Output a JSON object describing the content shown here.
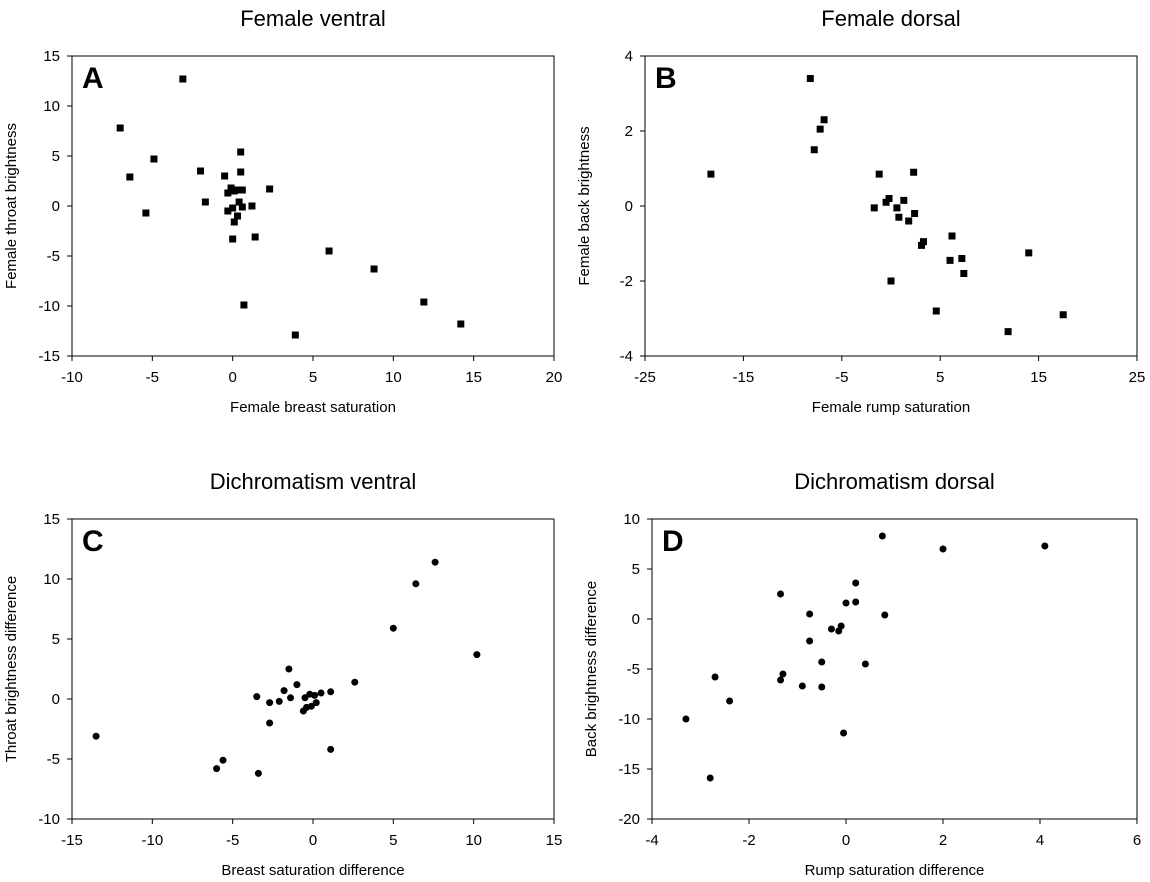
{
  "chart_data": [
    {
      "type": "scatter",
      "panel": "A",
      "title": "Female ventral",
      "xlabel": "Female breast saturation",
      "ylabel": "Female throat brightness",
      "xlim": [
        -10,
        20
      ],
      "ylim": [
        -15,
        15
      ],
      "xticks": [
        -10,
        -5,
        0,
        5,
        10,
        15,
        20
      ],
      "yticks": [
        -15,
        -10,
        -5,
        0,
        5,
        10,
        15
      ],
      "marker": "square",
      "grid": false,
      "points": [
        [
          -3.1,
          12.7
        ],
        [
          -7.0,
          7.8
        ],
        [
          -6.4,
          2.9
        ],
        [
          -4.9,
          4.7
        ],
        [
          -5.4,
          -0.7
        ],
        [
          -2.0,
          3.5
        ],
        [
          -1.7,
          0.4
        ],
        [
          0.5,
          5.4
        ],
        [
          0.5,
          3.4
        ],
        [
          -0.5,
          3.0
        ],
        [
          -0.3,
          1.3
        ],
        [
          -0.1,
          1.8
        ],
        [
          0.1,
          1.5
        ],
        [
          0.2,
          1.6
        ],
        [
          0.6,
          1.6
        ],
        [
          2.3,
          1.7
        ],
        [
          0.4,
          0.4
        ],
        [
          -0.3,
          -0.5
        ],
        [
          0.0,
          -0.2
        ],
        [
          0.6,
          -0.1
        ],
        [
          1.2,
          0.0
        ],
        [
          0.3,
          -1.0
        ],
        [
          0.1,
          -1.6
        ],
        [
          1.4,
          -3.1
        ],
        [
          0.0,
          -3.3
        ],
        [
          6.0,
          -4.5
        ],
        [
          0.7,
          -9.9
        ],
        [
          3.9,
          -12.9
        ],
        [
          8.8,
          -6.3
        ],
        [
          11.9,
          -9.6
        ],
        [
          14.2,
          -11.8
        ]
      ]
    },
    {
      "type": "scatter",
      "panel": "B",
      "title": "Female dorsal",
      "xlabel": "Female rump saturation",
      "ylabel": "Female back brightness",
      "xlim": [
        -25,
        25
      ],
      "ylim": [
        -4,
        4
      ],
      "xticks": [
        -25,
        -15,
        -5,
        5,
        15,
        25
      ],
      "yticks": [
        -4,
        -2,
        0,
        2,
        4
      ],
      "marker": "square",
      "grid": false,
      "points": [
        [
          -8.2,
          3.4
        ],
        [
          -6.8,
          2.3
        ],
        [
          -7.2,
          2.05
        ],
        [
          -7.8,
          1.5
        ],
        [
          -18.3,
          0.85
        ],
        [
          -1.2,
          0.85
        ],
        [
          2.3,
          0.9
        ],
        [
          -0.2,
          0.2
        ],
        [
          -0.5,
          0.1
        ],
        [
          1.3,
          0.15
        ],
        [
          -1.7,
          -0.05
        ],
        [
          0.6,
          -0.05
        ],
        [
          2.4,
          -0.2
        ],
        [
          0.8,
          -0.3
        ],
        [
          1.8,
          -0.4
        ],
        [
          3.3,
          -0.95
        ],
        [
          3.1,
          -1.05
        ],
        [
          0.0,
          -2.0
        ],
        [
          6.2,
          -0.8
        ],
        [
          6.0,
          -1.45
        ],
        [
          7.2,
          -1.4
        ],
        [
          7.4,
          -1.8
        ],
        [
          14.0,
          -1.25
        ],
        [
          4.6,
          -2.8
        ],
        [
          11.9,
          -3.35
        ],
        [
          17.5,
          -2.9
        ]
      ]
    },
    {
      "type": "scatter",
      "panel": "C",
      "title": "Dichromatism ventral",
      "xlabel": "Breast saturation difference",
      "ylabel": "Throat brightness difference",
      "xlim": [
        -15,
        15
      ],
      "ylim": [
        -10,
        15
      ],
      "xticks": [
        -15,
        -10,
        -5,
        0,
        5,
        10,
        15
      ],
      "yticks": [
        -10,
        -5,
        0,
        5,
        10,
        15
      ],
      "marker": "circle",
      "grid": false,
      "points": [
        [
          -13.5,
          -3.1
        ],
        [
          7.6,
          11.4
        ],
        [
          6.4,
          9.6
        ],
        [
          5.0,
          5.9
        ],
        [
          10.2,
          3.7
        ],
        [
          2.6,
          1.4
        ],
        [
          -1.5,
          2.5
        ],
        [
          -1.0,
          1.2
        ],
        [
          -1.8,
          0.7
        ],
        [
          -3.5,
          0.2
        ],
        [
          -2.1,
          -0.2
        ],
        [
          -2.7,
          -0.3
        ],
        [
          -1.4,
          0.1
        ],
        [
          -0.5,
          0.1
        ],
        [
          -0.2,
          0.4
        ],
        [
          0.1,
          0.3
        ],
        [
          0.5,
          0.5
        ],
        [
          1.1,
          0.6
        ],
        [
          0.2,
          -0.3
        ],
        [
          -0.4,
          -0.7
        ],
        [
          -0.1,
          -0.6
        ],
        [
          -0.6,
          -1.0
        ],
        [
          -2.7,
          -2.0
        ],
        [
          1.1,
          -4.2
        ],
        [
          -5.6,
          -5.1
        ],
        [
          -6.0,
          -5.8
        ],
        [
          -3.4,
          -6.2
        ]
      ]
    },
    {
      "type": "scatter",
      "panel": "D",
      "title": "Dichromatism dorsal",
      "xlabel": "Rump saturation difference",
      "ylabel": "Back brightness difference",
      "xlim": [
        -4,
        6
      ],
      "ylim": [
        -20,
        10
      ],
      "xticks": [
        -4,
        -2,
        0,
        2,
        4,
        6
      ],
      "yticks": [
        -20,
        -15,
        -10,
        -5,
        0,
        5,
        10
      ],
      "marker": "circle",
      "grid": false,
      "points": [
        [
          0.75,
          8.3
        ],
        [
          2.0,
          7.0
        ],
        [
          4.1,
          7.3
        ],
        [
          0.2,
          3.6
        ],
        [
          -1.35,
          2.5
        ],
        [
          0.2,
          1.7
        ],
        [
          0.0,
          1.6
        ],
        [
          -0.75,
          0.5
        ],
        [
          0.8,
          0.4
        ],
        [
          -0.1,
          -0.7
        ],
        [
          -0.3,
          -1.0
        ],
        [
          -0.15,
          -1.2
        ],
        [
          -0.75,
          -2.2
        ],
        [
          -0.5,
          -4.3
        ],
        [
          0.4,
          -4.5
        ],
        [
          -2.7,
          -5.8
        ],
        [
          -1.3,
          -5.5
        ],
        [
          -1.35,
          -6.1
        ],
        [
          -0.9,
          -6.7
        ],
        [
          -0.5,
          -6.8
        ],
        [
          -2.4,
          -8.2
        ],
        [
          -3.3,
          -10.0
        ],
        [
          -0.05,
          -11.4
        ],
        [
          -2.8,
          -15.9
        ]
      ]
    }
  ]
}
